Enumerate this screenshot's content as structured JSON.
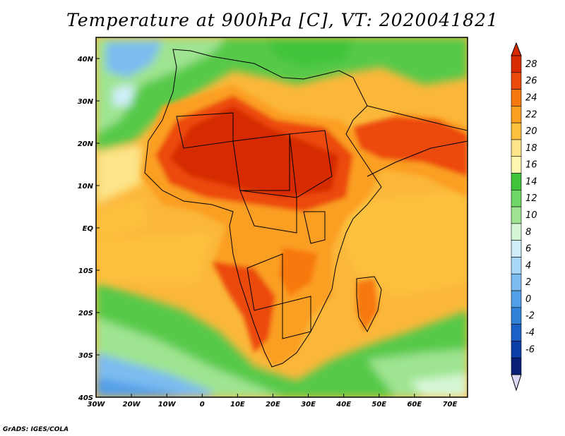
{
  "title": "Temperature at 900hPa [C], VT: 2020041821",
  "credit": "GrADS: IGES/COLA",
  "map": {
    "lon_range": [
      -30,
      75
    ],
    "lat_range": [
      -40,
      45
    ],
    "x_ticks": [
      {
        "value": -30,
        "label": "30W"
      },
      {
        "value": -20,
        "label": "20W"
      },
      {
        "value": -10,
        "label": "10W"
      },
      {
        "value": 0,
        "label": "0"
      },
      {
        "value": 10,
        "label": "10E"
      },
      {
        "value": 20,
        "label": "20E"
      },
      {
        "value": 30,
        "label": "30E"
      },
      {
        "value": 40,
        "label": "40E"
      },
      {
        "value": 50,
        "label": "50E"
      },
      {
        "value": 60,
        "label": "60E"
      },
      {
        "value": 70,
        "label": "70E"
      }
    ],
    "y_ticks": [
      {
        "value": 40,
        "label": "40N"
      },
      {
        "value": 30,
        "label": "30N"
      },
      {
        "value": 20,
        "label": "20N"
      },
      {
        "value": 10,
        "label": "10N"
      },
      {
        "value": 0,
        "label": "EQ"
      },
      {
        "value": -10,
        "label": "10S"
      },
      {
        "value": -20,
        "label": "20S"
      },
      {
        "value": -30,
        "label": "30S"
      },
      {
        "value": -40,
        "label": "40S"
      }
    ]
  },
  "colorbar": {
    "labels": [
      "28",
      "26",
      "24",
      "22",
      "20",
      "18",
      "16",
      "14",
      "12",
      "10",
      "8",
      "6",
      "4",
      "2",
      "0",
      "-2",
      "-4",
      "-6"
    ],
    "colors": [
      "#d62a00",
      "#ec4a0a",
      "#f7780f",
      "#fb9f21",
      "#fdc13d",
      "#fde489",
      "#fff6b0",
      "#3fc43a",
      "#70d665",
      "#9fe491",
      "#d6f7d6",
      "#d0eefa",
      "#a8d6f6",
      "#7cbcf0",
      "#529fe8",
      "#3183da",
      "#1a60c7",
      "#0c3fa8",
      "#0a1f78"
    ],
    "top_color": "#d62a00",
    "bottom_color": "#dcd8f8"
  }
}
